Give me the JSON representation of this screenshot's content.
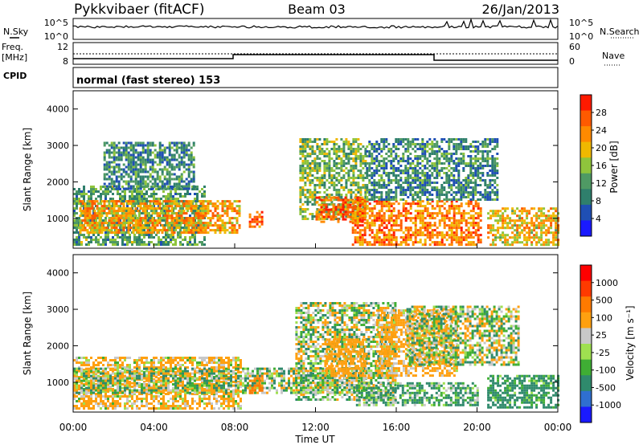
{
  "header": {
    "title": "Pykkvibaer (fitACF)",
    "beam": "Beam 03",
    "date": "26/Jan/2013"
  },
  "noise_panel": {
    "left_label": "N.Sky",
    "right_label": "N.Search",
    "left_ticks": [
      "10^5",
      "10^0"
    ],
    "right_ticks": [
      "10^5",
      "10^0"
    ]
  },
  "freq_panel": {
    "left_label_top": "Freq.",
    "left_label_unit": "[MHz]",
    "left_ticks": [
      "12",
      "8"
    ],
    "right_label": "Nave",
    "right_ticks": [
      "60",
      "0"
    ]
  },
  "cpid": {
    "label": "CPID",
    "mode": "normal (fast stereo) 153"
  },
  "colors": {
    "power_scale": [
      "#1a1aff",
      "#1f4fb4",
      "#2f7f6c",
      "#4f9a64",
      "#8fc43c",
      "#f0b800",
      "#ff8a00",
      "#ff5a00",
      "#ff1a00"
    ],
    "velocity_scale": [
      "#1a1aff",
      "#2f6fd0",
      "#2f8a6c",
      "#3fae34",
      "#9fe050",
      "#c8c8c8",
      "#ffa010",
      "#ff7a00",
      "#ff3a00",
      "#ff0000"
    ],
    "ground_scatter": "#c8c8c8"
  },
  "chart_data": [
    {
      "type": "heatmap",
      "name": "power",
      "ylabel": "Slant Range [km]",
      "ylim": [
        180,
        4500
      ],
      "yticks": [
        "1000",
        "2000",
        "3000",
        "4000"
      ],
      "colorbar_label": "Power [dB]",
      "colorbar_ticks": [
        "4",
        "8",
        "12",
        "16",
        "20",
        "24",
        "28"
      ],
      "colorbar_range": [
        0,
        32
      ],
      "xlim_hours": [
        0,
        24
      ],
      "regions": [
        {
          "t": [
            0.0,
            6.5
          ],
          "r": [
            300,
            1900
          ],
          "v": 12
        },
        {
          "t": [
            0.3,
            8.3
          ],
          "r": [
            600,
            1500
          ],
          "v": 22
        },
        {
          "t": [
            1.5,
            6.0
          ],
          "r": [
            1800,
            3100
          ],
          "v": 10
        },
        {
          "t": [
            8.7,
            9.4
          ],
          "r": [
            800,
            1200
          ],
          "v": 26
        },
        {
          "t": [
            11.2,
            14.5
          ],
          "r": [
            1000,
            3200
          ],
          "v": 14
        },
        {
          "t": [
            12.0,
            14.5
          ],
          "r": [
            900,
            1600
          ],
          "v": 26
        },
        {
          "t": [
            13.8,
            20.2
          ],
          "r": [
            300,
            1500
          ],
          "v": 24
        },
        {
          "t": [
            14.5,
            21.0
          ],
          "r": [
            1500,
            3200
          ],
          "v": 10
        },
        {
          "t": [
            20.5,
            24.0
          ],
          "r": [
            300,
            1300
          ],
          "v": 20
        }
      ]
    },
    {
      "type": "heatmap",
      "name": "velocity",
      "ylabel": "Slant Range [km]",
      "ylim": [
        180,
        4500
      ],
      "yticks": [
        "1000",
        "2000",
        "3000",
        "4000"
      ],
      "colorbar_label": "Velocity [m s⁻¹]",
      "colorbar_ticks": [
        "1000",
        "500",
        "100",
        "25",
        "-25",
        "-100",
        "-500",
        "-1000"
      ],
      "colorbar_range": [
        -1200,
        1200
      ],
      "xlabel": "Time UT",
      "xticks": [
        "00:00",
        "04:00",
        "08:00",
        "12:00",
        "16:00",
        "20:00",
        "00:00"
      ],
      "xlim_hours": [
        0,
        24
      ],
      "regions": [
        {
          "t": [
            0.0,
            8.3
          ],
          "r": [
            300,
            1700
          ],
          "v": -150
        },
        {
          "t": [
            0.0,
            14.5
          ],
          "r": [
            700,
            1400
          ],
          "v": 0
        },
        {
          "t": [
            8.7,
            9.4
          ],
          "r": [
            700,
            1200
          ],
          "v": -600
        },
        {
          "t": [
            11.0,
            16.0
          ],
          "r": [
            500,
            3200
          ],
          "v": 0
        },
        {
          "t": [
            12.5,
            14.5
          ],
          "r": [
            1200,
            2200
          ],
          "v": -300
        },
        {
          "t": [
            14.0,
            20.0
          ],
          "r": [
            350,
            1000
          ],
          "v": 120
        },
        {
          "t": [
            15.0,
            19.0
          ],
          "r": [
            1200,
            3000
          ],
          "v": -200
        },
        {
          "t": [
            16.5,
            22.0
          ],
          "r": [
            1500,
            3100
          ],
          "v": 0
        },
        {
          "t": [
            20.5,
            24.0
          ],
          "r": [
            300,
            1200
          ],
          "v": 200
        }
      ]
    }
  ]
}
